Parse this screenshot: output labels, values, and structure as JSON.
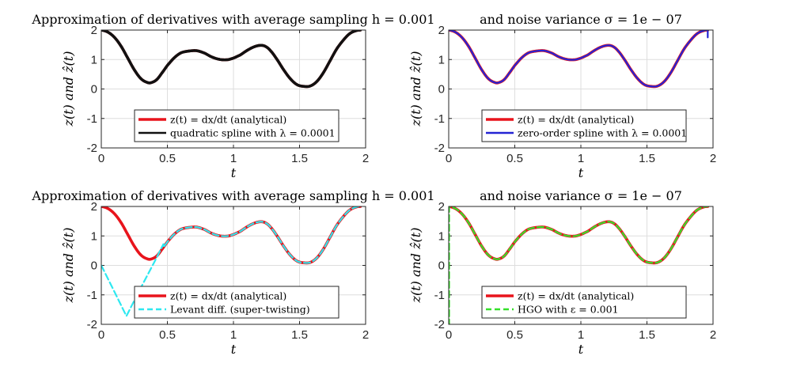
{
  "chart_data": [
    {
      "type": "line",
      "title": "Approximation of derivatives with average sampling h = 0.001",
      "xlabel": "t",
      "ylabel": "z(t) and ẑ(t)",
      "xlim": [
        0,
        2
      ],
      "ylim": [
        -2,
        2
      ],
      "xticks": [
        "0",
        "0.5",
        "1",
        "1.5",
        "2"
      ],
      "yticks": [
        "2",
        "1",
        "0",
        "-1",
        "-2"
      ],
      "grid": true,
      "legend_position": "bottom-center",
      "series": [
        {
          "name": "z(t) = dx/dt (analytical)",
          "color": "#e8141c",
          "dash": "solid",
          "kind": "analytical"
        },
        {
          "name": "quadratic spline with λ = 0.0001",
          "color": "#111111",
          "dash": "solid",
          "kind": "analytical"
        }
      ]
    },
    {
      "type": "line",
      "title": "and noise variance σ = 1e − 07",
      "xlabel": "t",
      "ylabel": "z(t) and ẑ(t)",
      "xlim": [
        0,
        2
      ],
      "ylim": [
        -2,
        2
      ],
      "xticks": [
        "0",
        "0.5",
        "1",
        "1.5",
        "2"
      ],
      "yticks": [
        "2",
        "1",
        "0",
        "-1",
        "-2"
      ],
      "grid": true,
      "legend_position": "bottom-center",
      "series": [
        {
          "name": "z(t) = dx/dt (analytical)",
          "color": "#e8141c",
          "dash": "solid",
          "kind": "analytical"
        },
        {
          "name": "zero-order spline with λ = 0.0001",
          "color": "#2424d4",
          "dash": "solid",
          "kind": "zero-order"
        }
      ]
    },
    {
      "type": "line",
      "title": "Approximation of derivatives with average sampling h = 0.001",
      "xlabel": "t",
      "ylabel": "z(t) and ẑ(t)",
      "xlim": [
        0,
        2
      ],
      "ylim": [
        -2,
        2
      ],
      "xticks": [
        "0",
        "0.5",
        "1",
        "1.5",
        "2"
      ],
      "yticks": [
        "2",
        "1",
        "0",
        "-1",
        "-2"
      ],
      "grid": true,
      "legend_position": "bottom-center",
      "series": [
        {
          "name": "z(t) = dx/dt (analytical)",
          "color": "#e8141c",
          "dash": "solid",
          "kind": "analytical"
        },
        {
          "name": "Levant diff. (super-twisting)",
          "color": "#2ee8f0",
          "dash": "dashed",
          "kind": "levant"
        }
      ]
    },
    {
      "type": "line",
      "title": "and noise variance σ = 1e − 07",
      "xlabel": "t",
      "ylabel": "z(t) and ẑ(t)",
      "xlim": [
        0,
        2
      ],
      "ylim": [
        -2,
        2
      ],
      "xticks": [
        "0",
        "0.5",
        "1",
        "1.5",
        "2"
      ],
      "yticks": [
        "2",
        "1",
        "0",
        "-1",
        "-2"
      ],
      "grid": true,
      "legend_position": "bottom-center",
      "series": [
        {
          "name": "z(t) = dx/dt (analytical)",
          "color": "#e8141c",
          "dash": "solid",
          "kind": "analytical"
        },
        {
          "name": "HGO with ε = 0.001",
          "color": "#35e02a",
          "dash": "dashed",
          "kind": "hgo"
        }
      ]
    }
  ],
  "reference_curve": {
    "t": [
      0,
      0.05,
      0.1,
      0.15,
      0.2,
      0.25,
      0.3,
      0.35,
      0.38,
      0.42,
      0.46,
      0.5,
      0.55,
      0.6,
      0.65,
      0.72,
      0.78,
      0.83,
      0.88,
      0.93,
      0.98,
      1.05,
      1.1,
      1.15,
      1.2,
      1.24,
      1.28,
      1.33,
      1.38,
      1.43,
      1.48,
      1.53,
      1.58,
      1.63,
      1.68,
      1.73,
      1.78,
      1.83,
      1.88,
      1.93,
      1.96
    ],
    "z": [
      2.0,
      1.93,
      1.75,
      1.45,
      1.05,
      0.65,
      0.35,
      0.22,
      0.22,
      0.32,
      0.55,
      0.8,
      1.05,
      1.22,
      1.28,
      1.3,
      1.22,
      1.1,
      1.02,
      0.99,
      1.02,
      1.15,
      1.3,
      1.42,
      1.48,
      1.45,
      1.3,
      1.0,
      0.65,
      0.35,
      0.15,
      0.09,
      0.1,
      0.25,
      0.55,
      0.95,
      1.35,
      1.65,
      1.88,
      1.98,
      2.0
    ]
  },
  "levant_transient": {
    "t": [
      0,
      0.1,
      0.19,
      0.3,
      0.4,
      0.47
    ],
    "z": [
      0,
      -0.9,
      -1.72,
      -0.75,
      0.1,
      0.72
    ]
  }
}
